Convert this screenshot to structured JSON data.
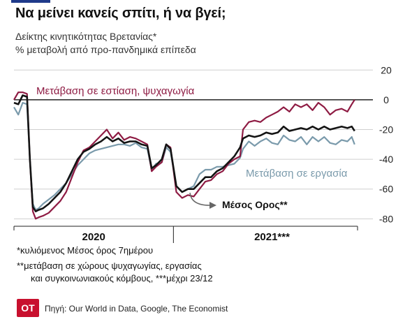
{
  "header": {
    "title": "Να μείνει κανείς σπίτι, ή να βγεί;",
    "subtitle_line1": "Δείκτης κινητικότητας Βρετανίας*",
    "subtitle_line2": "% μεταβολή από προ-πανδημικά επίπεδα"
  },
  "footer": {
    "note1": "*κυλιόμενος Μέσος όρος 7ημέρου",
    "note2": "**μετάβαση σε χώρους ψυχαγωγίας, εργασίας",
    "note3": "και συγκοινωνιακούς κόμβους, ***μέχρι 23/12",
    "logo_text": "OT",
    "source": "Πηγή: Our World in Data, Google, The Economist"
  },
  "chart_data": {
    "type": "line",
    "title": "Δείκτης κινητικότητας Βρετανίας*",
    "ylabel": "% μεταβολή από προ-πανδημικά επίπεδα",
    "ylim": [
      -85,
      22
    ],
    "yticks": [
      20,
      0,
      -20,
      -40,
      -60,
      -80
    ],
    "ytick_labels": [
      "20",
      "0",
      "-20",
      "-40",
      "-60",
      "-80"
    ],
    "xlim": [
      0,
      23.7
    ],
    "x_unit": "months since Feb 2020",
    "year_labels": [
      {
        "label": "2020",
        "x": 5.5
      },
      {
        "label": "2021***",
        "x": 17.8
      }
    ],
    "year_divider_x": 11,
    "colors": {
      "recreation": "#8e1b43",
      "work": "#7a9aab",
      "average": "#141414",
      "zero": "#222222",
      "grid": "#cfcfcf"
    },
    "annotations": {
      "recreation": "Μετάβαση σε εστίαση, ψυχαγωγία",
      "work": "Μετάβαση σε εργασία",
      "average": "Μέσος Ορος**"
    },
    "series": [
      {
        "name": "Μετάβαση σε εστίαση, ψυχαγωγία",
        "key": "recreation",
        "x": [
          0,
          0.3,
          0.6,
          0.9,
          1.1,
          1.3,
          1.5,
          1.7,
          2.0,
          2.4,
          2.8,
          3.2,
          3.6,
          4.0,
          4.4,
          4.8,
          5.2,
          5.6,
          6.0,
          6.4,
          6.8,
          7.2,
          7.6,
          8.0,
          8.4,
          8.8,
          9.2,
          9.5,
          9.8,
          10.2,
          10.5,
          10.8,
          11.2,
          11.6,
          12.0,
          12.4,
          12.8,
          13.2,
          13.6,
          14.0,
          14.4,
          14.8,
          15.2,
          15.6,
          15.8,
          16.2,
          16.6,
          17.0,
          17.4,
          17.8,
          18.2,
          18.6,
          19.0,
          19.4,
          19.8,
          20.2,
          20.6,
          21.0,
          21.4,
          21.8,
          22.2,
          22.6,
          23.0,
          23.3,
          23.5
        ],
        "y": [
          0,
          5,
          5,
          4,
          -40,
          -75,
          -80,
          -79,
          -78,
          -76,
          -72,
          -68,
          -62,
          -52,
          -42,
          -34,
          -32,
          -28,
          -24,
          -20,
          -26,
          -22,
          -27,
          -25,
          -26,
          -28,
          -30,
          -48,
          -45,
          -42,
          -30,
          -32,
          -62,
          -66,
          -64,
          -65,
          -60,
          -55,
          -54,
          -50,
          -48,
          -43,
          -40,
          -38,
          -20,
          -15,
          -14,
          -15,
          -12,
          -10,
          -8,
          -5,
          -8,
          -3,
          -5,
          -3,
          -7,
          -2,
          -5,
          -10,
          -7,
          -6,
          -8,
          -3,
          0
        ]
      },
      {
        "name": "Μετάβαση σε εργασία",
        "key": "work",
        "x": [
          0,
          0.3,
          0.6,
          0.9,
          1.1,
          1.3,
          1.5,
          1.7,
          2.0,
          2.4,
          2.8,
          3.2,
          3.6,
          4.0,
          4.4,
          4.8,
          5.2,
          5.6,
          6.0,
          6.4,
          6.8,
          7.2,
          7.6,
          8.0,
          8.4,
          8.8,
          9.2,
          9.5,
          9.8,
          10.2,
          10.5,
          10.8,
          11.2,
          11.6,
          12.0,
          12.4,
          12.8,
          13.2,
          13.6,
          14.0,
          14.4,
          14.8,
          15.2,
          15.6,
          15.8,
          16.2,
          16.6,
          17.0,
          17.4,
          17.8,
          18.2,
          18.6,
          19.0,
          19.4,
          19.8,
          20.2,
          20.6,
          21.0,
          21.4,
          21.8,
          22.2,
          22.6,
          23.0,
          23.3,
          23.5
        ],
        "y": [
          -5,
          -10,
          -2,
          -3,
          -40,
          -70,
          -74,
          -73,
          -70,
          -67,
          -64,
          -60,
          -56,
          -50,
          -44,
          -40,
          -36,
          -34,
          -33,
          -32,
          -31,
          -30,
          -30,
          -31,
          -29,
          -32,
          -33,
          -47,
          -43,
          -42,
          -32,
          -35,
          -58,
          -62,
          -60,
          -58,
          -50,
          -47,
          -47,
          -45,
          -45,
          -44,
          -43,
          -39,
          -33,
          -28,
          -31,
          -28,
          -26,
          -29,
          -30,
          -24,
          -27,
          -28,
          -25,
          -30,
          -25,
          -28,
          -25,
          -29,
          -30,
          -27,
          -28,
          -25,
          -30
        ]
      },
      {
        "name": "Μέσος Ορος**",
        "key": "average",
        "x": [
          0,
          0.3,
          0.6,
          0.9,
          1.1,
          1.3,
          1.5,
          1.7,
          2.0,
          2.4,
          2.8,
          3.2,
          3.6,
          4.0,
          4.4,
          4.8,
          5.2,
          5.6,
          6.0,
          6.4,
          6.8,
          7.2,
          7.6,
          8.0,
          8.4,
          8.8,
          9.2,
          9.5,
          9.8,
          10.2,
          10.5,
          10.8,
          11.2,
          11.6,
          12.0,
          12.4,
          12.8,
          13.2,
          13.6,
          14.0,
          14.4,
          14.8,
          15.2,
          15.6,
          15.8,
          16.2,
          16.6,
          17.0,
          17.4,
          17.8,
          18.2,
          18.6,
          19.0,
          19.4,
          19.8,
          20.2,
          20.6,
          21.0,
          21.4,
          21.8,
          22.2,
          22.6,
          23.0,
          23.3,
          23.5
        ],
        "y": [
          -2,
          -3,
          3,
          2,
          -40,
          -72,
          -75,
          -74,
          -73,
          -70,
          -66,
          -62,
          -56,
          -48,
          -40,
          -35,
          -33,
          -30,
          -28,
          -25,
          -28,
          -26,
          -29,
          -28,
          -28,
          -30,
          -31,
          -46,
          -44,
          -40,
          -30,
          -33,
          -58,
          -62,
          -60,
          -60,
          -56,
          -52,
          -52,
          -48,
          -46,
          -42,
          -38,
          -32,
          -26,
          -24,
          -25,
          -24,
          -22,
          -23,
          -22,
          -18,
          -21,
          -20,
          -19,
          -20,
          -18,
          -20,
          -18,
          -20,
          -19,
          -18,
          -19,
          -18,
          -21
        ]
      }
    ]
  }
}
